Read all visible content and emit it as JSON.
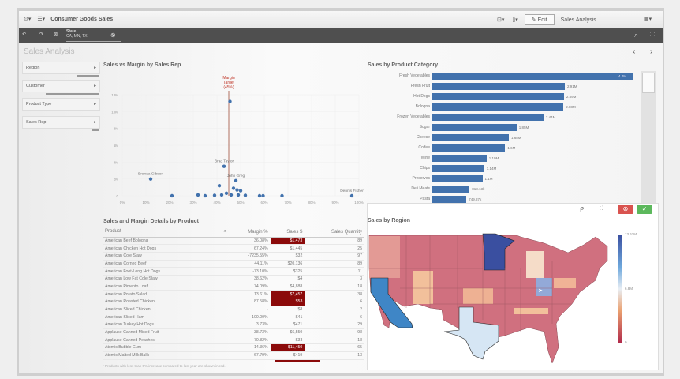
{
  "app": {
    "title": "Consumer Goods Sales",
    "edit_label": "Edit",
    "sheet_name": "Sales Analysis"
  },
  "selection": {
    "field": "State",
    "values": "CA, MN, TX"
  },
  "sheet": {
    "title": "Sales Analysis"
  },
  "filters": [
    {
      "label": "Region",
      "fill": 0.3
    },
    {
      "label": "Customer",
      "fill": 0.7
    },
    {
      "label": "Product Type",
      "fill": 0
    },
    {
      "label": "Sales Rep",
      "fill": 0.1
    }
  ],
  "scatter": {
    "title": "Sales vs Margin by Sales Rep"
  },
  "bars_panel": {
    "title": "Sales by Product Category"
  },
  "table_panel": {
    "title": "Sales and Margin Details by Product",
    "footnote": "* Products with less than 5% increase compared to last year are shown in red."
  },
  "map_panel": {
    "title": "Sales by Region",
    "legend": {
      "max": "13.61M",
      "mid": "6.8M",
      "min": "0"
    }
  },
  "colors": {
    "accent": "#4272ad",
    "highlight": "#8b0a0a",
    "target": "#c0392b",
    "confirm": "#5cb85c",
    "cancel": "#d9534f"
  },
  "chart_data": [
    {
      "type": "scatter",
      "title": "Sales vs Margin by Sales Rep",
      "xlim": [
        0,
        100
      ],
      "ylim": [
        0,
        12
      ],
      "x_ticks": [
        "0%",
        "10%",
        "20%",
        "30%",
        "40%",
        "50%",
        "60%",
        "70%",
        "80%",
        "90%",
        "100%"
      ],
      "y_ticks": [
        "0",
        "2M",
        "4M",
        "6M",
        "8M",
        "10M",
        "12M"
      ],
      "grid": true,
      "reference_line": {
        "x": 45,
        "label": [
          "Margin",
          "Target",
          "(45%)"
        ]
      },
      "points": [
        {
          "x": 45.5,
          "y": 11.2
        },
        {
          "x": 12,
          "y": 2,
          "label": "Brenda Gibson"
        },
        {
          "x": 43,
          "y": 3.5,
          "label": "Brad Taylor"
        },
        {
          "x": 48,
          "y": 1.8,
          "label": "John Greg"
        },
        {
          "x": 97,
          "y": 0,
          "label": "Dennis Fisher"
        },
        {
          "x": 41,
          "y": 1.2
        },
        {
          "x": 47,
          "y": 0.9
        },
        {
          "x": 48.5,
          "y": 0.7
        },
        {
          "x": 50,
          "y": 0.6
        },
        {
          "x": 21,
          "y": 0
        },
        {
          "x": 32,
          "y": 0.1
        },
        {
          "x": 35,
          "y": 0
        },
        {
          "x": 39,
          "y": 0.05
        },
        {
          "x": 42,
          "y": 0.1
        },
        {
          "x": 44,
          "y": 0.3
        },
        {
          "x": 46,
          "y": 0.1
        },
        {
          "x": 49,
          "y": 0.1
        },
        {
          "x": 52,
          "y": 0.05
        },
        {
          "x": 58,
          "y": 0
        },
        {
          "x": 59.5,
          "y": 0
        },
        {
          "x": 67.5,
          "y": 0
        }
      ]
    },
    {
      "type": "bar",
      "orientation": "horizontal",
      "title": "Sales by Product Category",
      "categories": [
        "Fresh Vegetables",
        "Fresh Fruit",
        "Hot Dogs",
        "Bologna",
        "Frozen Vegetables",
        "Sugar",
        "Cheese",
        "Coffee",
        "Wine",
        "Chips",
        "Preserves",
        "Deli Meats",
        "Pasta"
      ],
      "values": [
        4.4,
        2.91,
        2.89,
        2.88,
        2.44,
        1.85,
        1.68,
        1.6,
        1.19,
        1.14,
        1.1,
        0.818,
        0.749
      ],
      "labels": [
        "4.4M",
        "2.91M",
        "2.89M",
        "2.88M",
        "2.44M",
        "1.85M",
        "1.68M",
        "1.6M",
        "1.19M",
        "1.14M",
        "1.1M",
        "818.13k",
        "749.87k"
      ]
    },
    {
      "type": "table",
      "title": "Sales and Margin Details by Product",
      "columns": [
        "Product",
        "Margin %",
        "Sales $",
        "Sales Quantity"
      ],
      "rows": [
        [
          "American Beef Bologna",
          "36.08%",
          "$1,473",
          "89",
          true
        ],
        [
          "American Chicken Hot Dogs",
          "67.24%",
          "$1,445",
          "25",
          false
        ],
        [
          "American Cole Slaw",
          "-7235.55%",
          "$32",
          "97",
          false
        ],
        [
          "American Corned Beef",
          "44.11%",
          "$20,136",
          "89",
          false
        ],
        [
          "American Foot-Long Hot Dogs",
          "-73.10%",
          "$325",
          "11",
          false
        ],
        [
          "American Low Fat Cole Slaw",
          "38.62%",
          "$4",
          "3",
          false
        ],
        [
          "American Pimento Loaf",
          "74.09%",
          "$4,888",
          "18",
          false
        ],
        [
          "American Potato Salad",
          "13.61%",
          "$7,457",
          "38",
          true
        ],
        [
          "American Roasted Chicken",
          "87.58%",
          "$53",
          "6",
          true
        ],
        [
          "American Sliced Chicken",
          "-",
          "$8",
          "2",
          false
        ],
        [
          "American Sliced Ham",
          "100.00%",
          "$41",
          "6",
          false
        ],
        [
          "American Turkey Hot Dogs",
          "3.73%",
          "$471",
          "29",
          false
        ],
        [
          "Applause Canned Mixed Fruit",
          "38.73%",
          "$6,550",
          "98",
          false
        ],
        [
          "Applause Canned Peaches",
          "70.82%",
          "$33",
          "18",
          false
        ],
        [
          "Atomic Bubble Gum",
          "14.36%",
          "$11,450",
          "65",
          true
        ],
        [
          "Atomic Malted Milk Balls",
          "67.79%",
          "$419",
          "13",
          false
        ]
      ]
    }
  ]
}
